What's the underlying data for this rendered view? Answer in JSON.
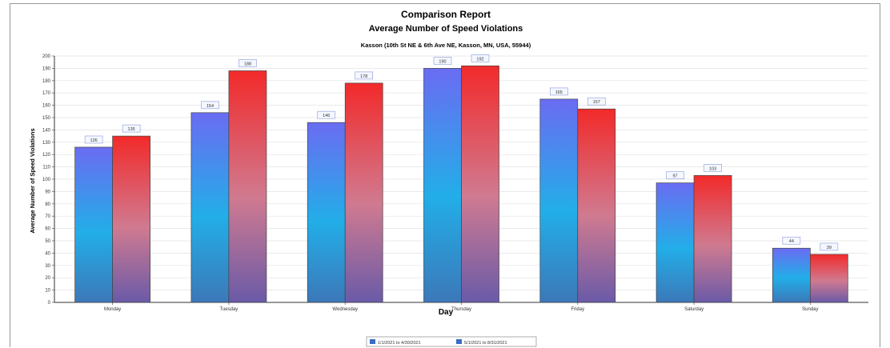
{
  "chart_data": {
    "type": "bar",
    "title": "Comparison Report",
    "subtitle": "Average Number of Speed Violations",
    "location": "Kasson (10th St NE & 6th Ave NE, Kasson, MN, USA, 55944)",
    "xlabel": "Day",
    "ylabel": "Average Number of Speed Violations",
    "ylim": [
      0,
      200
    ],
    "yticks": [
      0,
      10,
      20,
      30,
      40,
      50,
      60,
      70,
      80,
      90,
      100,
      110,
      120,
      130,
      140,
      150,
      160,
      170,
      180,
      190,
      200
    ],
    "categories": [
      "Monday",
      "Tuesday",
      "Wednesday",
      "Thursday",
      "Friday",
      "Saturday",
      "Sunday"
    ],
    "series": [
      {
        "name": "1/1/2021 to 4/30/2021",
        "values": [
          126,
          154,
          146,
          190,
          165,
          97,
          44
        ],
        "color": "#5a78e6"
      },
      {
        "name": "5/1/2021 to 8/31/2021",
        "values": [
          135,
          188,
          178,
          192,
          157,
          103,
          39
        ],
        "color": "#e63232"
      }
    ],
    "grid": true,
    "legend": "bottom-center"
  }
}
